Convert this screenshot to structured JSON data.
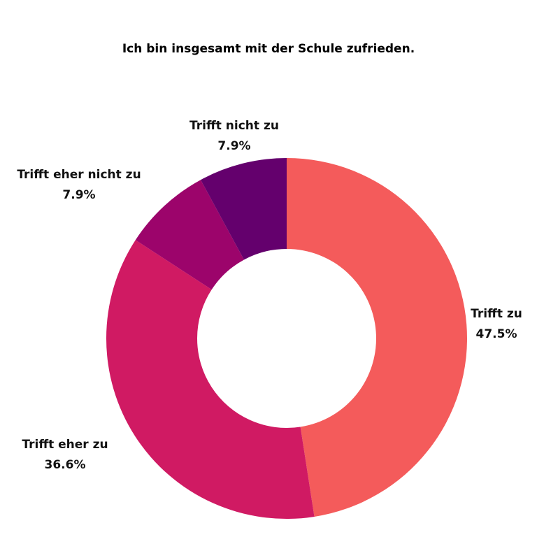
{
  "chart_data": {
    "type": "pie",
    "title": "Ich bin insgesamt mit der Schule zufrieden.",
    "donut": true,
    "slices": [
      {
        "label": "Trifft zu",
        "value": 47.5,
        "value_label": "47.5%",
        "color": "#f45b5b"
      },
      {
        "label": "Trifft eher zu",
        "value": 36.6,
        "value_label": "36.6%",
        "color": "#d01a63"
      },
      {
        "label": "Trifft eher nicht zu",
        "value": 7.9,
        "value_label": "7.9%",
        "color": "#9c046b"
      },
      {
        "label": "Trifft nicht zu",
        "value": 7.9,
        "value_label": "7.9%",
        "color": "#64006d"
      }
    ]
  }
}
